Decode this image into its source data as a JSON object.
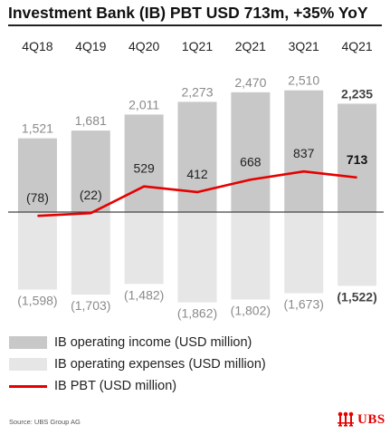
{
  "title": "Investment Bank (IB) PBT USD 713m, +35% YoY",
  "colors": {
    "income": "#c8c8c8",
    "expenses": "#e6e6e6",
    "pbt": "#e60000",
    "axis": "#444444",
    "label": "#8a8a8a",
    "emphasis": "#444444"
  },
  "chart_data": {
    "type": "bar",
    "categories": [
      "4Q18",
      "4Q19",
      "4Q20",
      "1Q21",
      "2Q21",
      "3Q21",
      "4Q21"
    ],
    "series": [
      {
        "name": "IB operating income (USD million)",
        "values": [
          1521,
          1681,
          2011,
          2273,
          2470,
          2510,
          2235
        ],
        "labels": [
          "1,521",
          "1,681",
          "2,011",
          "2,273",
          "2,470",
          "2,510",
          "2,235"
        ]
      },
      {
        "name": "IB operating expenses (USD million)",
        "values": [
          -1598,
          -1703,
          -1482,
          -1862,
          -1802,
          -1673,
          -1522
        ],
        "labels": [
          "(1,598)",
          "(1,703)",
          "(1,482)",
          "(1,862)",
          "(1,802)",
          "(1,673)",
          "(1,522)"
        ]
      },
      {
        "name": "IB PBT (USD million)",
        "type": "line",
        "values": [
          -78,
          -22,
          529,
          412,
          668,
          837,
          713
        ],
        "labels": [
          "(78)",
          "(22)",
          "529",
          "412",
          "668",
          "837",
          "713"
        ]
      }
    ],
    "highlight_category": "4Q21",
    "legend_position": "bottom-left",
    "grid": false
  },
  "legend": [
    {
      "label": "IB operating income (USD million)",
      "swatch": "income"
    },
    {
      "label": "IB operating expenses (USD million)",
      "swatch": "expenses"
    },
    {
      "label": "IB PBT (USD million)",
      "swatch": "pbt"
    }
  ],
  "source": "Source: UBS Group AG",
  "logo": {
    "text": "UBS",
    "icon": "keys-icon"
  }
}
